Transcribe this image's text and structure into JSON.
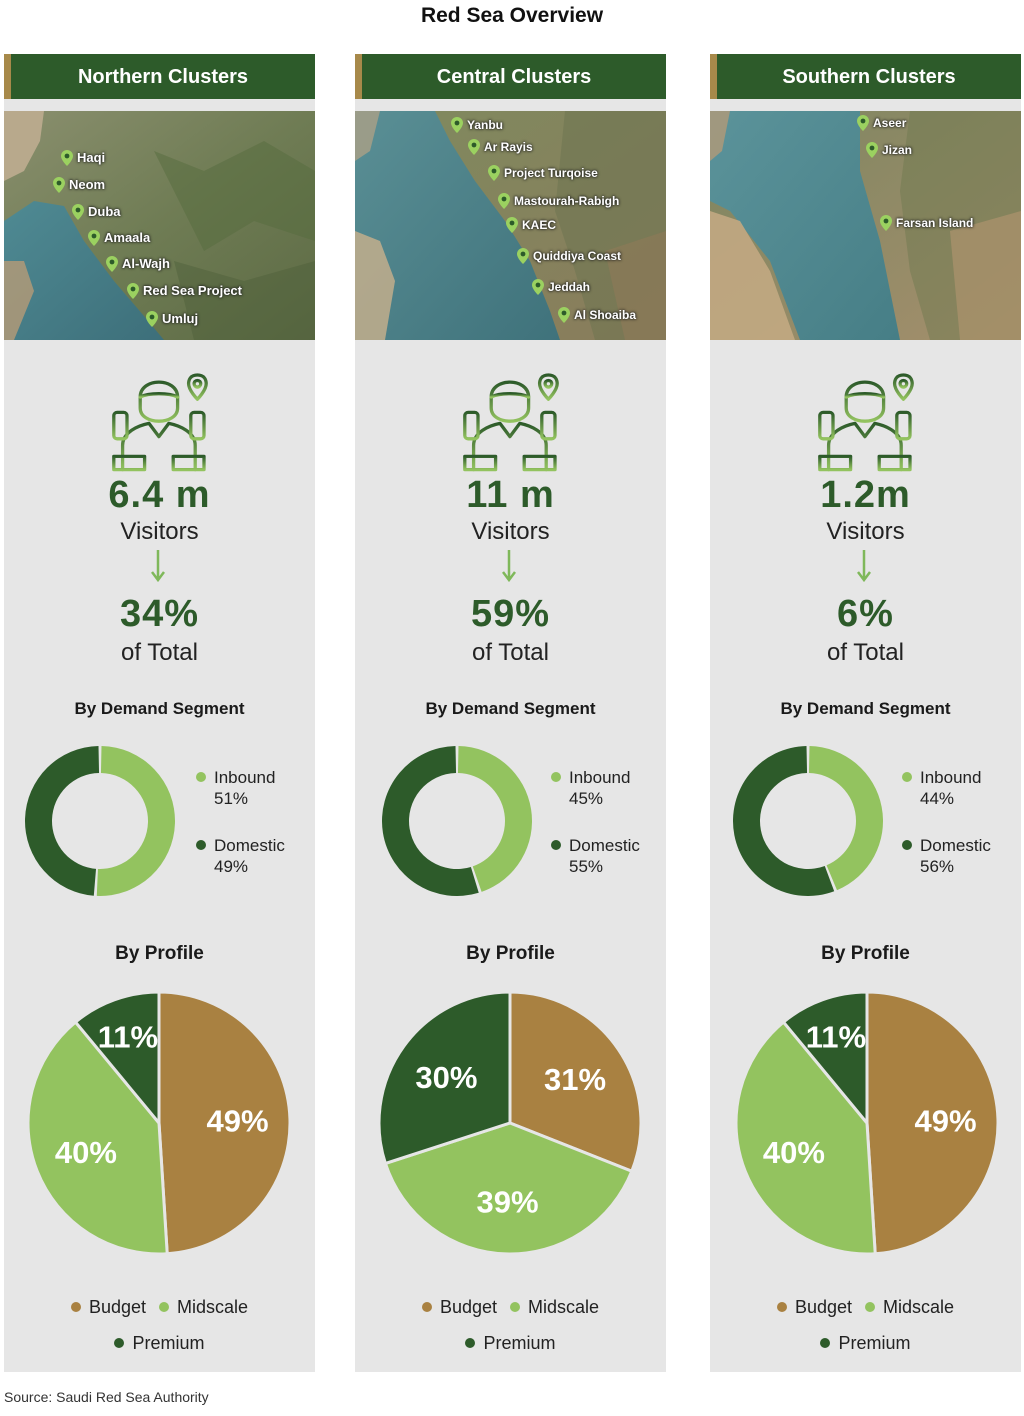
{
  "title": "Red Sea Overview",
  "source": "Source: Saudi Red Sea Authority",
  "colors": {
    "header_bg": "#2d5b2a",
    "header_accent": "#a7894a",
    "inbound": "#93c35f",
    "domestic": "#2d5b2a",
    "budget": "#a98141",
    "midscale": "#93c35f",
    "premium": "#2d5b2a",
    "panel_bg": "#e6e6e6"
  },
  "labels": {
    "visitors": "Visitors",
    "of_total": "of Total",
    "by_demand_segment": "By Demand Segment",
    "by_profile": "By Profile"
  },
  "chart_data": [
    {
      "type": "pie",
      "cluster": "Northern Clusters",
      "locations": [
        "Haqi",
        "Neom",
        "Duba",
        "Amaala",
        "Al-Wajh",
        "Red Sea Project",
        "Umluj"
      ],
      "visitors": "6.4 m",
      "share_of_total": "34%",
      "demand_segment": {
        "title": "By Demand Segment",
        "kind": "donut",
        "slices": [
          {
            "label": "Inbound",
            "value": 51,
            "display": "51%"
          },
          {
            "label": "Domestic",
            "value": 49,
            "display": "49%"
          }
        ]
      },
      "profile": {
        "title": "By Profile",
        "slices": [
          {
            "label": "Budget",
            "value": 49,
            "display": "49%"
          },
          {
            "label": "Midscale",
            "value": 40,
            "display": "40%"
          },
          {
            "label": "Premium",
            "value": 11,
            "display": "11%"
          }
        ]
      }
    },
    {
      "type": "pie",
      "cluster": "Central Clusters",
      "locations": [
        "Yanbu",
        "Ar Rayis",
        "Project Turqoise",
        "Mastourah-Rabigh",
        "KAEC",
        "Quiddiya Coast",
        "Jeddah",
        "Al Shoaiba"
      ],
      "visitors": "11 m",
      "share_of_total": "59%",
      "demand_segment": {
        "title": "By Demand Segment",
        "kind": "donut",
        "slices": [
          {
            "label": "Inbound",
            "value": 45,
            "display": "45%"
          },
          {
            "label": "Domestic",
            "value": 55,
            "display": "55%"
          }
        ]
      },
      "profile": {
        "title": "By Profile",
        "slices": [
          {
            "label": "Budget",
            "value": 31,
            "display": "31%"
          },
          {
            "label": "Midscale",
            "value": 39,
            "display": "39%"
          },
          {
            "label": "Premium",
            "value": 30,
            "display": "30%"
          }
        ]
      }
    },
    {
      "type": "pie",
      "cluster": "Southern Clusters",
      "locations": [
        "Aseer",
        "Jizan",
        "Farsan Island"
      ],
      "visitors": "1.2m",
      "share_of_total": "6%",
      "demand_segment": {
        "title": "By Demand Segment",
        "kind": "donut",
        "slices": [
          {
            "label": "Inbound",
            "value": 44,
            "display": "44%"
          },
          {
            "label": "Domestic",
            "value": 56,
            "display": "56%"
          }
        ]
      },
      "profile": {
        "title": "By Profile",
        "slices": [
          {
            "label": "Budget",
            "value": 49,
            "display": "49%"
          },
          {
            "label": "Midscale",
            "value": 40,
            "display": "40%"
          },
          {
            "label": "Premium",
            "value": 11,
            "display": "11%"
          }
        ]
      }
    }
  ]
}
